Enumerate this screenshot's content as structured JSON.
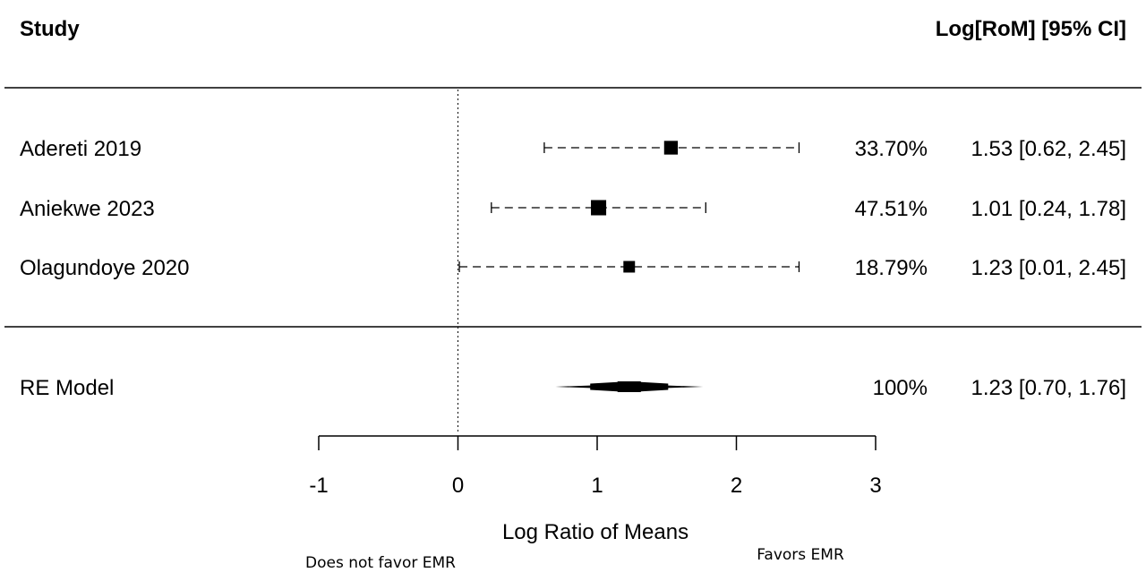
{
  "chart_data": {
    "type": "forest",
    "col_study": "Study",
    "col_effect": "Log[RoM] [95% CI]",
    "studies": [
      {
        "name": "Adereti 2019",
        "estimate": 1.53,
        "lower": 0.62,
        "upper": 2.45,
        "weight": "33.70%",
        "ci_text": "1.53 [0.62, 2.45]"
      },
      {
        "name": "Aniekwe 2023",
        "estimate": 1.01,
        "lower": 0.24,
        "upper": 1.78,
        "weight": "47.51%",
        "ci_text": "1.01 [0.24, 1.78]"
      },
      {
        "name": "Olagundoye 2020",
        "estimate": 1.23,
        "lower": 0.01,
        "upper": 2.45,
        "weight": "18.79%",
        "ci_text": "1.23 [0.01, 2.45]"
      }
    ],
    "summary": {
      "name": "RE Model",
      "estimate": 1.23,
      "lower": 0.7,
      "upper": 1.76,
      "pi_lower": 0.7,
      "pi_upper": 1.76,
      "weight": "100%",
      "ci_text": "1.23 [0.70, 1.76]"
    },
    "xlabel": "Log Ratio of Means",
    "xticks": [
      -1,
      0,
      1,
      2,
      3
    ],
    "xlim": [
      -1,
      3
    ],
    "reference_line": 0,
    "left_annotation": "Does not favor EMR",
    "right_annotation": "Favors EMR"
  }
}
